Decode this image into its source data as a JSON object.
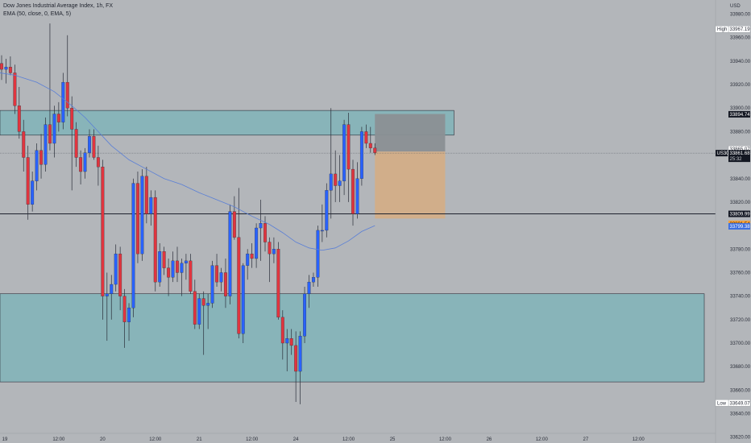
{
  "legend": {
    "title": "Dow Jones Industrial Average Index, 1h, FX",
    "indicator": "EMA (50, close, 0, EMA, 5)"
  },
  "currency": "USD",
  "colors": {
    "background": "#b3b6ba",
    "up": "#2962ff",
    "down": "#e0353f",
    "zone": "#88b4b9",
    "ema": "#5a7fd6",
    "target": "#d3ae87",
    "stop": "#8b9094"
  },
  "chart_data": {
    "type": "candlestick",
    "title": "Dow Jones Industrial Average Index, 1h, FX",
    "symbol": "US30",
    "interval": "1h",
    "ylim": [
      33615,
      33992
    ],
    "y_ticks": [
      33980.0,
      33960.0,
      33940.0,
      33920.0,
      33900.0,
      33880.0,
      33860.0,
      33840.0,
      33820.0,
      33800.0,
      33780.0,
      33760.0,
      33740.0,
      33720.0,
      33700.0,
      33680.0,
      33660.0,
      33640.0,
      33620.0
    ],
    "x_ticks": [
      {
        "label": "19",
        "bar": 0
      },
      {
        "label": "12:00",
        "bar": 13
      },
      {
        "label": "20",
        "bar": 23
      },
      {
        "label": "12:00",
        "bar": 35
      },
      {
        "label": "21",
        "bar": 45
      },
      {
        "label": "12:00",
        "bar": 57
      },
      {
        "label": "24",
        "bar": 67
      },
      {
        "label": "12:00",
        "bar": 79
      },
      {
        "label": "25",
        "bar": 89
      },
      {
        "label": "12:00",
        "bar": 101
      },
      {
        "label": "26",
        "bar": 111
      },
      {
        "label": "12:00",
        "bar": 123
      },
      {
        "label": "27",
        "bar": 133
      },
      {
        "label": "12:00",
        "bar": 145
      }
    ],
    "price_labels": {
      "high_label": "High",
      "high": 33967.19,
      "low_label": "Low",
      "low": 33649.07,
      "symbol": "US30",
      "last": 33861.68,
      "countdown": "25:32",
      "zone_top": 33894.74,
      "entry": 33865.07,
      "level": 33809.99,
      "target": 33801.54,
      "ema": 33799.38
    },
    "zones": [
      {
        "from": 33877,
        "to": 33898,
        "bar_start": -2,
        "bar_end": 103
      },
      {
        "from": 33667,
        "to": 33742,
        "bar_start": -2,
        "bar_end": 160
      }
    ],
    "horizontal_line": 33809.99,
    "position": {
      "type": "short",
      "entry": 33863,
      "stop": 33895,
      "target": 33806,
      "bar_start": 85,
      "bar_end": 101
    },
    "ema": [
      [
        -1,
        33930
      ],
      [
        3,
        33928
      ],
      [
        8,
        33922
      ],
      [
        12,
        33914
      ],
      [
        16,
        33902
      ],
      [
        19,
        33892
      ],
      [
        22,
        33880
      ],
      [
        25,
        33868
      ],
      [
        29,
        33856
      ],
      [
        33,
        33848
      ],
      [
        37,
        33840
      ],
      [
        41,
        33835
      ],
      [
        45,
        33828
      ],
      [
        49,
        33822
      ],
      [
        53,
        33816
      ],
      [
        57,
        33808
      ],
      [
        61,
        33801
      ],
      [
        64,
        33794
      ],
      [
        67,
        33786
      ],
      [
        70,
        33781
      ],
      [
        73,
        33779
      ],
      [
        76,
        33781
      ],
      [
        79,
        33787
      ],
      [
        82,
        33795
      ],
      [
        85,
        33800
      ]
    ],
    "candles": [
      {
        "o": 33938,
        "h": 33945,
        "l": 33924,
        "c": 33933
      },
      {
        "o": 33933,
        "h": 33942,
        "l": 33921,
        "c": 33935
      },
      {
        "o": 33935,
        "h": 33944,
        "l": 33928,
        "c": 33930
      },
      {
        "o": 33930,
        "h": 33937,
        "l": 33895,
        "c": 33902
      },
      {
        "o": 33902,
        "h": 33918,
        "l": 33874,
        "c": 33880
      },
      {
        "o": 33880,
        "h": 33890,
        "l": 33846,
        "c": 33858
      },
      {
        "o": 33858,
        "h": 33868,
        "l": 33805,
        "c": 33818
      },
      {
        "o": 33818,
        "h": 33846,
        "l": 33812,
        "c": 33838
      },
      {
        "o": 33838,
        "h": 33870,
        "l": 33830,
        "c": 33864
      },
      {
        "o": 33864,
        "h": 33878,
        "l": 33840,
        "c": 33852
      },
      {
        "o": 33852,
        "h": 33892,
        "l": 33846,
        "c": 33886
      },
      {
        "o": 33886,
        "h": 33972,
        "l": 33864,
        "c": 33870
      },
      {
        "o": 33870,
        "h": 33902,
        "l": 33858,
        "c": 33895
      },
      {
        "o": 33895,
        "h": 33905,
        "l": 33880,
        "c": 33888
      },
      {
        "o": 33888,
        "h": 33930,
        "l": 33882,
        "c": 33922
      },
      {
        "o": 33922,
        "h": 33962,
        "l": 33893,
        "c": 33900
      },
      {
        "o": 33900,
        "h": 33910,
        "l": 33830,
        "c": 33882
      },
      {
        "o": 33882,
        "h": 33888,
        "l": 33850,
        "c": 33858
      },
      {
        "o": 33858,
        "h": 33864,
        "l": 33835,
        "c": 33846
      },
      {
        "o": 33846,
        "h": 33866,
        "l": 33840,
        "c": 33862
      },
      {
        "o": 33862,
        "h": 33882,
        "l": 33858,
        "c": 33876
      },
      {
        "o": 33876,
        "h": 33882,
        "l": 33856,
        "c": 33858
      },
      {
        "o": 33858,
        "h": 33868,
        "l": 33834,
        "c": 33850
      },
      {
        "o": 33850,
        "h": 33856,
        "l": 33720,
        "c": 33740
      },
      {
        "o": 33740,
        "h": 33760,
        "l": 33702,
        "c": 33742
      },
      {
        "o": 33742,
        "h": 33758,
        "l": 33720,
        "c": 33750
      },
      {
        "o": 33750,
        "h": 33784,
        "l": 33744,
        "c": 33776
      },
      {
        "o": 33776,
        "h": 33782,
        "l": 33728,
        "c": 33740
      },
      {
        "o": 33740,
        "h": 33746,
        "l": 33696,
        "c": 33718
      },
      {
        "o": 33718,
        "h": 33734,
        "l": 33702,
        "c": 33730
      },
      {
        "o": 33730,
        "h": 33840,
        "l": 33722,
        "c": 33836
      },
      {
        "o": 33836,
        "h": 33846,
        "l": 33768,
        "c": 33776
      },
      {
        "o": 33776,
        "h": 33848,
        "l": 33770,
        "c": 33842
      },
      {
        "o": 33842,
        "h": 33850,
        "l": 33802,
        "c": 33810
      },
      {
        "o": 33810,
        "h": 33830,
        "l": 33800,
        "c": 33824
      },
      {
        "o": 33824,
        "h": 33830,
        "l": 33744,
        "c": 33752
      },
      {
        "o": 33752,
        "h": 33785,
        "l": 33748,
        "c": 33778
      },
      {
        "o": 33778,
        "h": 33782,
        "l": 33758,
        "c": 33764
      },
      {
        "o": 33764,
        "h": 33772,
        "l": 33740,
        "c": 33756
      },
      {
        "o": 33756,
        "h": 33778,
        "l": 33752,
        "c": 33770
      },
      {
        "o": 33770,
        "h": 33782,
        "l": 33752,
        "c": 33760
      },
      {
        "o": 33760,
        "h": 33772,
        "l": 33740,
        "c": 33768
      },
      {
        "o": 33768,
        "h": 33776,
        "l": 33754,
        "c": 33770
      },
      {
        "o": 33770,
        "h": 33776,
        "l": 33742,
        "c": 33744
      },
      {
        "o": 33744,
        "h": 33754,
        "l": 33712,
        "c": 33716
      },
      {
        "o": 33716,
        "h": 33742,
        "l": 33712,
        "c": 33738
      },
      {
        "o": 33738,
        "h": 33744,
        "l": 33690,
        "c": 33732
      },
      {
        "o": 33732,
        "h": 33742,
        "l": 33712,
        "c": 33734
      },
      {
        "o": 33734,
        "h": 33770,
        "l": 33730,
        "c": 33766
      },
      {
        "o": 33766,
        "h": 33776,
        "l": 33748,
        "c": 33752
      },
      {
        "o": 33752,
        "h": 33764,
        "l": 33744,
        "c": 33760
      },
      {
        "o": 33760,
        "h": 33772,
        "l": 33730,
        "c": 33740
      },
      {
        "o": 33740,
        "h": 33818,
        "l": 33733,
        "c": 33812
      },
      {
        "o": 33812,
        "h": 33825,
        "l": 33788,
        "c": 33790
      },
      {
        "o": 33790,
        "h": 33832,
        "l": 33704,
        "c": 33708
      },
      {
        "o": 33708,
        "h": 33768,
        "l": 33700,
        "c": 33766
      },
      {
        "o": 33766,
        "h": 33780,
        "l": 33754,
        "c": 33776
      },
      {
        "o": 33776,
        "h": 33785,
        "l": 33764,
        "c": 33772
      },
      {
        "o": 33772,
        "h": 33802,
        "l": 33764,
        "c": 33798
      },
      {
        "o": 33798,
        "h": 33822,
        "l": 33770,
        "c": 33802
      },
      {
        "o": 33802,
        "h": 33808,
        "l": 33778,
        "c": 33786
      },
      {
        "o": 33786,
        "h": 33790,
        "l": 33752,
        "c": 33776
      },
      {
        "o": 33776,
        "h": 33790,
        "l": 33768,
        "c": 33780
      },
      {
        "o": 33780,
        "h": 33786,
        "l": 33720,
        "c": 33722
      },
      {
        "o": 33722,
        "h": 33728,
        "l": 33686,
        "c": 33700
      },
      {
        "o": 33700,
        "h": 33712,
        "l": 33676,
        "c": 33704
      },
      {
        "o": 33704,
        "h": 33712,
        "l": 33690,
        "c": 33698
      },
      {
        "o": 33698,
        "h": 33710,
        "l": 33650,
        "c": 33676
      },
      {
        "o": 33676,
        "h": 33710,
        "l": 33648,
        "c": 33706
      },
      {
        "o": 33706,
        "h": 33748,
        "l": 33700,
        "c": 33742
      },
      {
        "o": 33742,
        "h": 33758,
        "l": 33730,
        "c": 33752
      },
      {
        "o": 33752,
        "h": 33760,
        "l": 33748,
        "c": 33756
      },
      {
        "o": 33756,
        "h": 33800,
        "l": 33748,
        "c": 33796
      },
      {
        "o": 33796,
        "h": 33818,
        "l": 33786,
        "c": 33796
      },
      {
        "o": 33796,
        "h": 33836,
        "l": 33790,
        "c": 33830
      },
      {
        "o": 33830,
        "h": 33900,
        "l": 33806,
        "c": 33844
      },
      {
        "o": 33844,
        "h": 33864,
        "l": 33820,
        "c": 33834
      },
      {
        "o": 33834,
        "h": 33860,
        "l": 33820,
        "c": 33838
      },
      {
        "o": 33838,
        "h": 33890,
        "l": 33826,
        "c": 33886
      },
      {
        "o": 33886,
        "h": 33896,
        "l": 33820,
        "c": 33848
      },
      {
        "o": 33848,
        "h": 33856,
        "l": 33800,
        "c": 33810
      },
      {
        "o": 33810,
        "h": 33854,
        "l": 33806,
        "c": 33840
      },
      {
        "o": 33840,
        "h": 33884,
        "l": 33834,
        "c": 33880
      },
      {
        "o": 33880,
        "h": 33886,
        "l": 33866,
        "c": 33870
      },
      {
        "o": 33870,
        "h": 33884,
        "l": 33862,
        "c": 33866
      },
      {
        "o": 33866,
        "h": 33870,
        "l": 33860,
        "c": 33862
      }
    ]
  }
}
